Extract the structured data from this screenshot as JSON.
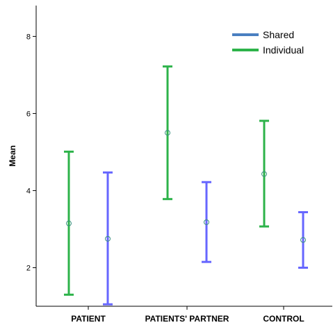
{
  "chart_data": {
    "type": "errorbar",
    "ylabel": "Mean",
    "xlabel": "",
    "ylim": [
      1,
      8.8
    ],
    "yticks": [
      2,
      4,
      6,
      8
    ],
    "categories": [
      "PATIENT",
      "PATIENTS' PARTNER",
      "CONTROL"
    ],
    "legend_position": "top-right",
    "grid": false,
    "series": [
      {
        "name": "Shared",
        "color": "#6666ff",
        "legend_color": "#4a7fc1",
        "mean": [
          2.75,
          3.18,
          2.72
        ],
        "lower": [
          1.05,
          2.15,
          2.0
        ],
        "upper": [
          4.47,
          4.22,
          3.44
        ]
      },
      {
        "name": "Individual",
        "color": "#2db34a",
        "legend_color": "#2db34a",
        "mean": [
          3.15,
          5.5,
          4.43
        ],
        "lower": [
          1.3,
          3.78,
          3.07
        ],
        "upper": [
          5.01,
          7.22,
          5.81
        ]
      }
    ]
  }
}
